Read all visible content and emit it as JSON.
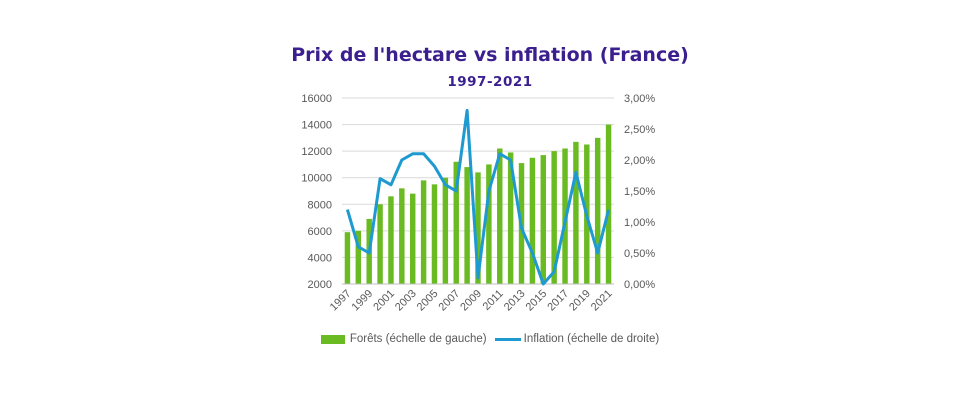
{
  "chart_data": {
    "type": "bar",
    "title": "Prix de l'hectare vs inflation (France)",
    "subtitle": "1997-2021",
    "categories": [
      "1997",
      "1998",
      "1999",
      "2000",
      "2001",
      "2002",
      "2003",
      "2004",
      "2005",
      "2006",
      "2007",
      "2008",
      "2009",
      "2010",
      "2011",
      "2012",
      "2013",
      "2014",
      "2015",
      "2016",
      "2017",
      "2018",
      "2019",
      "2020",
      "2021"
    ],
    "x_tick_labels": [
      "1997",
      "1999",
      "2001",
      "2003",
      "2005",
      "2007",
      "2009",
      "2011",
      "2013",
      "2015",
      "2017",
      "2019",
      "2021"
    ],
    "y_left": {
      "min": 2000,
      "max": 16000,
      "ticks": [
        "2000",
        "4000",
        "6000",
        "8000",
        "10000",
        "12000",
        "14000",
        "16000"
      ]
    },
    "y_right": {
      "min": 0,
      "max": 3,
      "ticks": [
        "0,00%",
        "0,50%",
        "1,00%",
        "1,50%",
        "2,00%",
        "2,50%",
        "3,00%"
      ]
    },
    "grid": true,
    "legend_position": "bottom",
    "series": [
      {
        "name": "Forêts (échelle de gauche)",
        "type": "bar",
        "axis": "left",
        "color": "#6aba22",
        "values": [
          5900,
          6000,
          6900,
          8000,
          8600,
          9200,
          8800,
          9800,
          9500,
          10000,
          11200,
          10800,
          10400,
          11000,
          12200,
          11900,
          11100,
          11500,
          11700,
          12000,
          12200,
          12700,
          12500,
          13000,
          14000
        ]
      },
      {
        "name": "Inflation (échelle de droite)",
        "type": "line",
        "axis": "right",
        "color": "#1e9ad0",
        "values": [
          1.2,
          0.6,
          0.5,
          1.7,
          1.6,
          2.0,
          2.1,
          2.1,
          1.9,
          1.6,
          1.5,
          2.8,
          0.1,
          1.5,
          2.1,
          2.0,
          0.9,
          0.5,
          0.0,
          0.2,
          1.0,
          1.8,
          1.1,
          0.5,
          1.2
        ]
      }
    ]
  }
}
